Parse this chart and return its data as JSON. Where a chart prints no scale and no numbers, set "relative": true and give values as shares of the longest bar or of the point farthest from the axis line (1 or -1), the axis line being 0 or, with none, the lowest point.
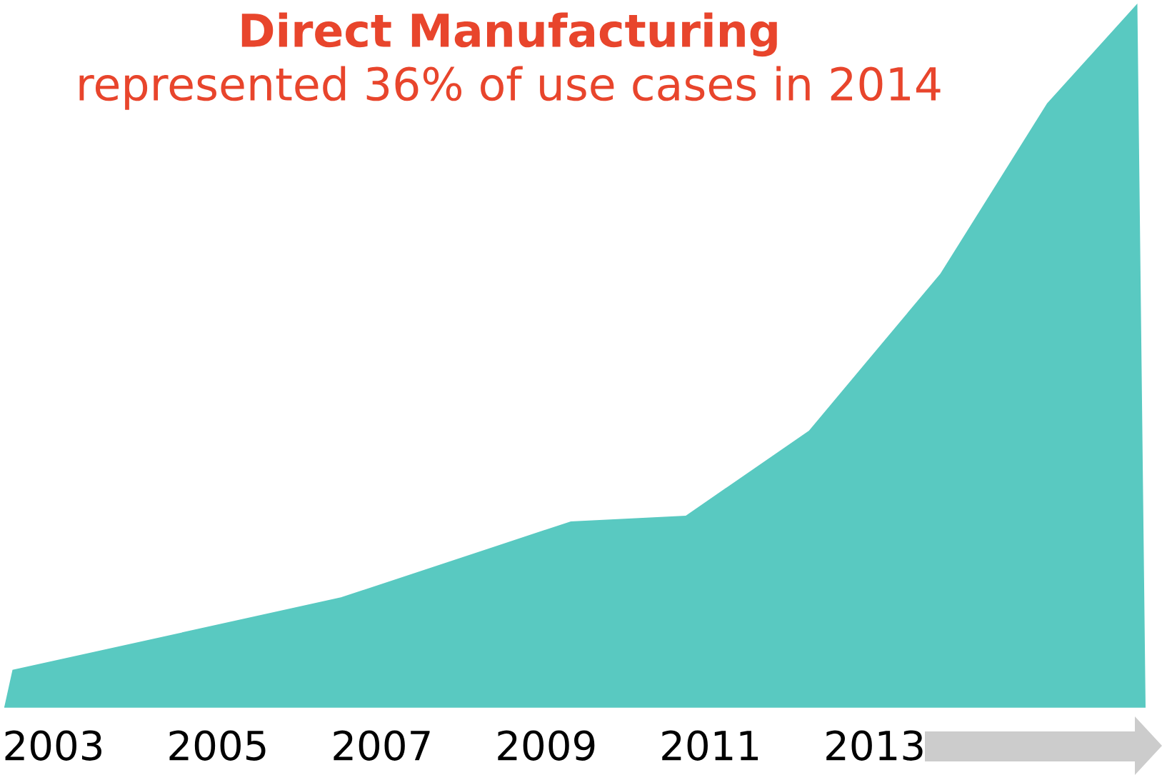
{
  "chart_data": {
    "type": "area",
    "title": "Direct Manufacturing",
    "subtitle": "represented 36% of use cases in 2014",
    "x": [
      2002.4,
      2002.5,
      2006.5,
      2009.3,
      2010.7,
      2012.2,
      2013.8,
      2015.1,
      2016.2,
      2016.3
    ],
    "values": [
      0,
      0.053,
      0.156,
      0.264,
      0.272,
      0.393,
      0.616,
      0.858,
      1.0,
      0
    ],
    "color": "#59c9c1",
    "relative": true,
    "xlim": [
      2002.4,
      2016.3
    ],
    "xticks": [
      2003,
      2005,
      2007,
      2009,
      2011,
      2013
    ]
  }
}
